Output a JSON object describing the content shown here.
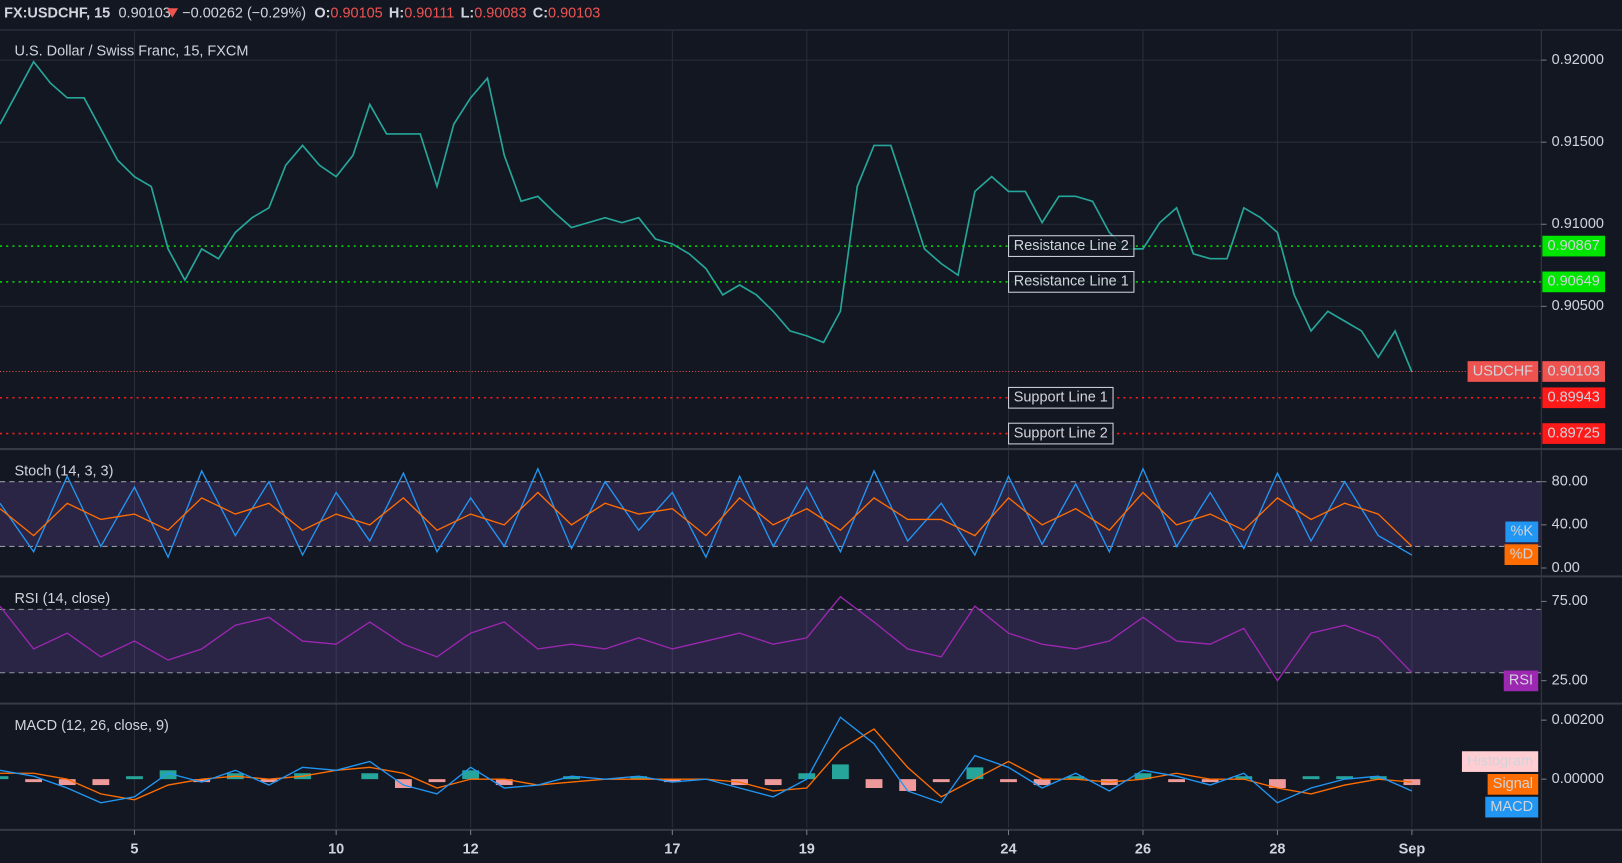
{
  "header": {
    "symbol": "FX:USDCHF, 15",
    "price": "0.90103",
    "change": "−0.00262 (−0.29%)",
    "ohlc": [
      {
        "label": "O:",
        "value": "0.90105"
      },
      {
        "label": "H:",
        "value": "0.90111"
      },
      {
        "label": "L:",
        "value": "0.90083"
      },
      {
        "label": "C:",
        "value": "0.90103"
      }
    ]
  },
  "chart_data": [
    {
      "type": "line",
      "title": "U.S. Dollar / Swiss Franc, 15, FXCM",
      "grid": true,
      "xlim": [
        0,
        91.7
      ],
      "xticks": [
        {
          "value": 8,
          "label": "5"
        },
        {
          "value": 20,
          "label": "10"
        },
        {
          "value": 28,
          "label": "12"
        },
        {
          "value": 40,
          "label": "17"
        },
        {
          "value": 48,
          "label": "19"
        },
        {
          "value": 60,
          "label": "24"
        },
        {
          "value": 68,
          "label": "26"
        },
        {
          "value": 76,
          "label": "28"
        },
        {
          "value": 84,
          "label": "Sep"
        }
      ],
      "ylim": [
        0.89643,
        0.92177
      ],
      "yticks": [
        {
          "value": 0.905,
          "label": "0.90500"
        },
        {
          "value": 0.91,
          "label": "0.91000"
        },
        {
          "value": 0.915,
          "label": "0.91500"
        },
        {
          "value": 0.92,
          "label": "0.92000"
        }
      ],
      "series": [
        {
          "name": "USDCHF",
          "color": "#26a69a",
          "last": 0.90103,
          "last_color": "#ef5350",
          "values": [
            0.9161,
            0.918,
            0.9199,
            0.9186,
            0.9177,
            0.9177,
            0.9158,
            0.9139,
            0.9129,
            0.9123,
            0.9085,
            0.9066,
            0.9085,
            0.9079,
            0.9095,
            0.9104,
            0.911,
            0.9136,
            0.9148,
            0.9136,
            0.9129,
            0.9142,
            0.9173,
            0.9155,
            0.9155,
            0.9155,
            0.9123,
            0.9161,
            0.9177,
            0.9189,
            0.9142,
            0.9114,
            0.9117,
            0.9107,
            0.9098,
            0.9101,
            0.9104,
            0.9101,
            0.9104,
            0.9091,
            0.9088,
            0.9082,
            0.9073,
            0.9057,
            0.9063,
            0.9057,
            0.9047,
            0.9035,
            0.9032,
            0.9028,
            0.9047,
            0.9123,
            0.9148,
            0.9148,
            0.9117,
            0.9085,
            0.9076,
            0.9069,
            0.912,
            0.9129,
            0.912,
            0.912,
            0.9101,
            0.9117,
            0.9117,
            0.9114,
            0.9095,
            0.9085,
            0.9085,
            0.9101,
            0.911,
            0.9082,
            0.9079,
            0.9079,
            0.911,
            0.9104,
            0.9095,
            0.9057,
            0.9035,
            0.9047,
            0.9041,
            0.9035,
            0.9019,
            0.9035,
            0.901
          ]
        }
      ],
      "levels": [
        {
          "name": "Resistance Line 2",
          "value": 0.90867,
          "color": "#00e600"
        },
        {
          "name": "Resistance Line 1",
          "value": 0.90649,
          "color": "#00e600"
        },
        {
          "name": "Support Line 1",
          "value": 0.89943,
          "color": "#ff1a1a"
        },
        {
          "name": "Support Line 2",
          "value": 0.89725,
          "color": "#ff1a1a"
        }
      ]
    },
    {
      "type": "line",
      "title": "Stoch (14, 3, 3)",
      "xlim": [
        0,
        45.85
      ],
      "ylim": [
        -6.8,
        108.3
      ],
      "yticks": [
        {
          "value": 0,
          "label": "0.00"
        },
        {
          "value": 40,
          "label": "40.00"
        },
        {
          "value": 80,
          "label": "80.00"
        }
      ],
      "band": [
        20,
        80
      ],
      "band_color": "#7e57c2",
      "series": [
        {
          "name": "%K",
          "color": "#2196f3",
          "values": [
            60,
            15,
            85,
            20,
            75,
            10,
            90,
            30,
            80,
            12,
            70,
            25,
            88,
            15,
            65,
            20,
            92,
            18,
            80,
            35,
            70,
            10,
            85,
            20,
            75,
            15,
            90,
            25,
            60,
            12,
            85,
            22,
            78,
            15,
            92,
            20,
            70,
            18,
            88,
            25,
            80,
            30,
            12
          ]
        },
        {
          "name": "%D",
          "color": "#ff6d00",
          "values": [
            55,
            30,
            60,
            45,
            50,
            35,
            65,
            50,
            60,
            35,
            50,
            40,
            65,
            35,
            50,
            40,
            70,
            40,
            60,
            50,
            55,
            30,
            65,
            40,
            55,
            35,
            65,
            45,
            45,
            30,
            65,
            40,
            55,
            35,
            70,
            40,
            50,
            35,
            65,
            45,
            60,
            50,
            20
          ]
        }
      ]
    },
    {
      "type": "line",
      "title": "RSI (14, close)",
      "xlim": [
        0,
        45.85
      ],
      "ylim": [
        11.8,
        89.5
      ],
      "yticks": [
        {
          "value": 25,
          "label": "25.00"
        },
        {
          "value": 75,
          "label": "75.00"
        }
      ],
      "band": [
        30,
        70
      ],
      "band_color": "#7e57c2",
      "series": [
        {
          "name": "RSI",
          "color": "#9c27b0",
          "values": [
            72,
            45,
            55,
            40,
            50,
            38,
            45,
            60,
            65,
            50,
            48,
            62,
            48,
            40,
            55,
            62,
            45,
            48,
            45,
            52,
            45,
            50,
            55,
            48,
            52,
            78,
            62,
            45,
            40,
            72,
            55,
            48,
            45,
            50,
            65,
            50,
            48,
            58,
            25,
            55,
            60,
            52,
            30
          ]
        }
      ]
    },
    {
      "type": "line",
      "title": "MACD (12, 26, close, 9)",
      "xlim": [
        0,
        45.85
      ],
      "ylim": [
        -0.00165,
        0.00249
      ],
      "yticks": [
        {
          "value": 0,
          "label": "0.00000"
        },
        {
          "value": 0.002,
          "label": "0.00200"
        }
      ],
      "series": [
        {
          "name": "Histogram",
          "type": "bar",
          "color": "#ffcdd2",
          "positive_color": "#26a69a",
          "negative_color": "#ef9a9a",
          "values": [
            0.0001,
            -0.0001,
            -0.0002,
            -0.0002,
            0.0001,
            0.0003,
            -0.0001,
            0.0002,
            -0.0001,
            0.0002,
            0,
            0.0002,
            -0.0003,
            -0.0001,
            0.0003,
            -0.0002,
            0,
            0.0001,
            0,
            0.0001,
            -0.0001,
            0,
            -0.0002,
            -0.0002,
            0.0002,
            0.0005,
            -0.0003,
            -0.0004,
            -0.0001,
            0.0004,
            -0.0001,
            -0.0002,
            0.0001,
            -0.0002,
            0.0002,
            -0.0001,
            -0.0001,
            0.0001,
            -0.0003,
            0.0001,
            0.0001,
            0.0001,
            -0.0002
          ]
        },
        {
          "name": "Signal",
          "color": "#ff6d00",
          "values": [
            0.0002,
            0.0002,
            0,
            -0.0005,
            -0.0007,
            -0.0002,
            0,
            0.0001,
            0,
            0.0001,
            0.0003,
            0.0004,
            0.0002,
            -0.0003,
            0,
            0,
            -0.0002,
            -0.0001,
            0,
            0,
            0,
            0,
            -0.0001,
            -0.0004,
            -0.0003,
            0.001,
            0.0017,
            0.0004,
            -0.0006,
            0,
            0.0006,
            0,
            0,
            -0.0001,
            0,
            0.0002,
            0,
            0,
            -0.0003,
            -0.0005,
            -0.0002,
            0,
            -0.0001
          ]
        },
        {
          "name": "MACD",
          "color": "#2196f3",
          "values": [
            0.0003,
            0.0001,
            -0.0003,
            -0.0008,
            -0.0006,
            0.0002,
            -0.0001,
            0.0003,
            -0.0002,
            0.0004,
            0.0003,
            0.0006,
            -0.0002,
            -0.0005,
            0.0004,
            -0.0003,
            -0.0002,
            0.0001,
            0,
            0.0001,
            -0.0001,
            0,
            -0.0003,
            -0.0006,
            0,
            0.0021,
            0.0012,
            -0.0004,
            -0.0008,
            0.0008,
            0.0004,
            -0.0003,
            0.0002,
            -0.0004,
            0.0003,
            0.0001,
            -0.0002,
            0.0002,
            -0.0008,
            -0.0003,
            0,
            0.0001,
            -0.0004
          ]
        }
      ]
    }
  ]
}
